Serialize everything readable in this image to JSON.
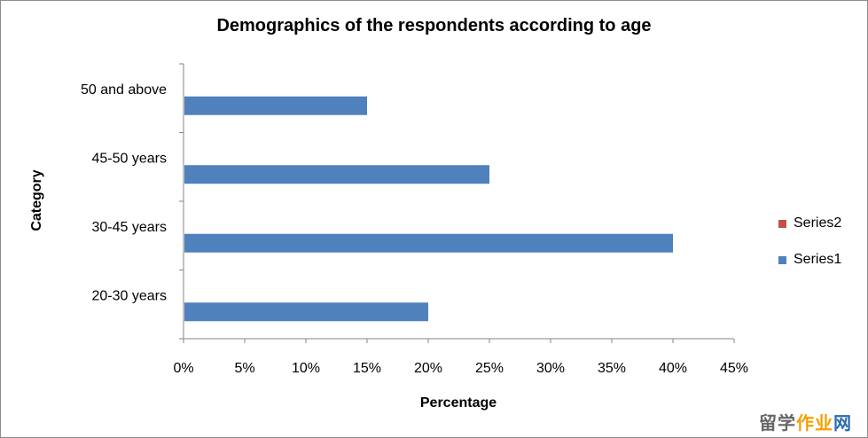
{
  "chart_data": {
    "type": "bar",
    "orientation": "horizontal",
    "title": "Demographics of the respondents according to age",
    "xlabel": "Percentage",
    "ylabel": "Category",
    "categories": [
      "20-30 years",
      "30-45 years",
      "45-50 years",
      "50 and above"
    ],
    "series": [
      {
        "name": "Series1",
        "values": [
          0.2,
          0.4,
          0.25,
          0.15
        ],
        "color": "#4f81bd"
      },
      {
        "name": "Series2",
        "values": [
          null,
          null,
          null,
          null
        ],
        "color": "#c0504d"
      }
    ],
    "xlim": [
      0,
      0.45
    ],
    "x_ticks": [
      "0%",
      "5%",
      "10%",
      "15%",
      "20%",
      "25%",
      "30%",
      "35%",
      "40%",
      "45%"
    ],
    "grid": false,
    "legend_position": "right"
  },
  "watermark": {
    "part1": "留学",
    "part2": "作业",
    "part3": "网"
  }
}
